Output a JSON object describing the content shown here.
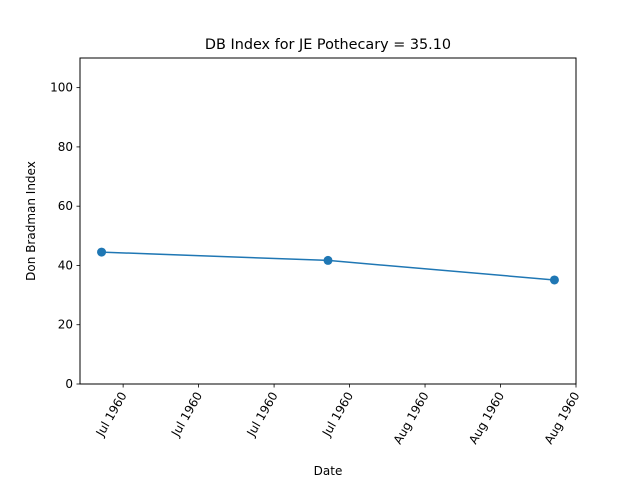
{
  "chart_data": {
    "type": "line",
    "title": "DB Index for JE Pothecary = 35.10",
    "xlabel": "Date",
    "ylabel": "Don Bradman Index",
    "x": [
      "1960-06-30",
      "1960-07-21",
      "1960-08-11"
    ],
    "series": [
      {
        "values": [
          44.5,
          41.7,
          35.1
        ]
      }
    ],
    "xlim": [
      "1960-06-28",
      "1960-08-13"
    ],
    "xticks": [
      "1960-07-02",
      "1960-07-09",
      "1960-07-16",
      "1960-07-23",
      "1960-07-30",
      "1960-08-06",
      "1960-08-13"
    ],
    "xtick_labels": [
      "Jul 1960",
      "Jul 1960",
      "Jul 1960",
      "Jul 1960",
      "Aug 1960",
      "Aug 1960",
      "Aug 1960"
    ],
    "ylim": [
      0,
      110
    ],
    "yticks": [
      0,
      20,
      40,
      60,
      80,
      100
    ],
    "ytick_labels": [
      "0",
      "20",
      "40",
      "60",
      "80",
      "100"
    ],
    "grid": false,
    "colors": {
      "series": "#1f77b4",
      "axes": "#000000"
    }
  }
}
